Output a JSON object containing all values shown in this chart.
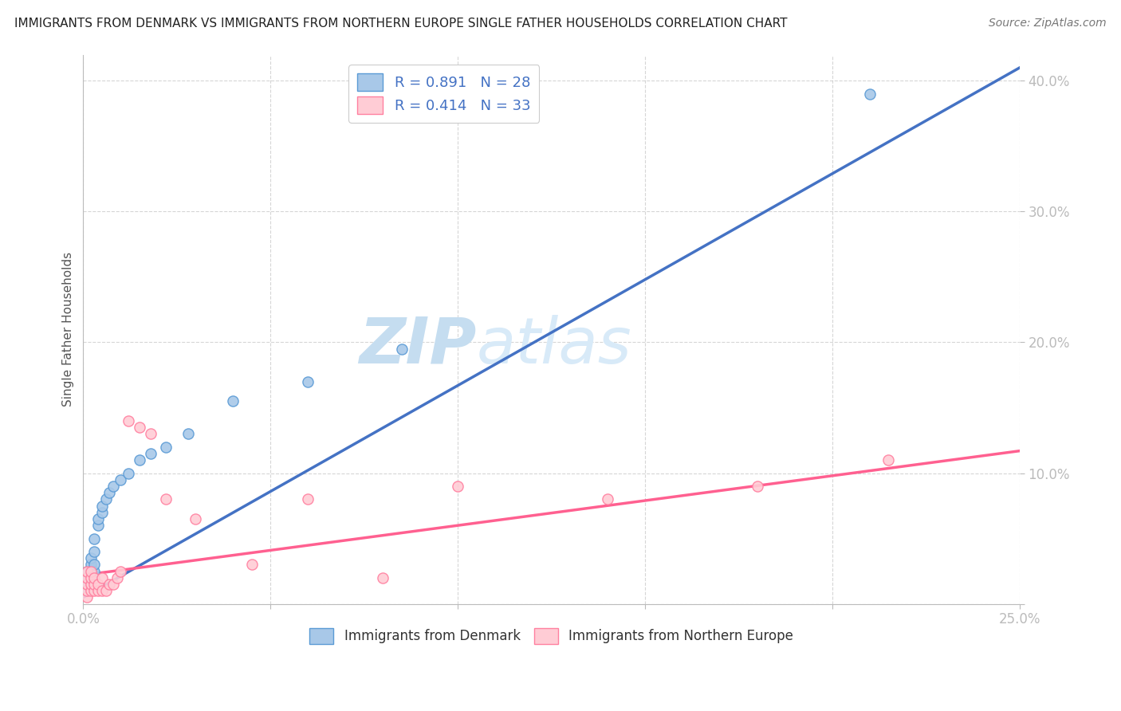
{
  "title": "IMMIGRANTS FROM DENMARK VS IMMIGRANTS FROM NORTHERN EUROPE SINGLE FATHER HOUSEHOLDS CORRELATION CHART",
  "source": "Source: ZipAtlas.com",
  "ylabel": "Single Father Households",
  "xlim": [
    0,
    0.25
  ],
  "ylim": [
    0,
    0.42
  ],
  "legend_r1": "R = 0.891",
  "legend_n1": "N = 28",
  "legend_r2": "R = 0.414",
  "legend_n2": "N = 33",
  "series1_color": "#a8c8e8",
  "series1_edge": "#5b9bd5",
  "series2_color": "#ffccd5",
  "series2_edge": "#ff80a0",
  "trendline1_color": "#4472c4",
  "trendline2_color": "#ff6090",
  "watermark_zip_color": "#c8dff0",
  "watermark_atlas_color": "#d8e8f5",
  "background_color": "#ffffff",
  "grid_color": "#cccccc",
  "tick_color": "#4472c4",
  "denmark_x": [
    0.001,
    0.001,
    0.001,
    0.001,
    0.002,
    0.002,
    0.002,
    0.003,
    0.003,
    0.003,
    0.003,
    0.004,
    0.004,
    0.005,
    0.005,
    0.006,
    0.007,
    0.008,
    0.01,
    0.012,
    0.015,
    0.018,
    0.022,
    0.028,
    0.04,
    0.06,
    0.085,
    0.21
  ],
  "denmark_y": [
    0.01,
    0.015,
    0.02,
    0.025,
    0.02,
    0.03,
    0.035,
    0.025,
    0.03,
    0.04,
    0.05,
    0.06,
    0.065,
    0.07,
    0.075,
    0.08,
    0.085,
    0.09,
    0.095,
    0.1,
    0.11,
    0.115,
    0.12,
    0.13,
    0.155,
    0.17,
    0.195,
    0.39
  ],
  "northern_x": [
    0.001,
    0.001,
    0.001,
    0.001,
    0.001,
    0.002,
    0.002,
    0.002,
    0.002,
    0.003,
    0.003,
    0.003,
    0.004,
    0.004,
    0.005,
    0.005,
    0.006,
    0.007,
    0.008,
    0.009,
    0.01,
    0.012,
    0.015,
    0.018,
    0.022,
    0.03,
    0.045,
    0.06,
    0.08,
    0.1,
    0.14,
    0.18,
    0.215
  ],
  "northern_y": [
    0.005,
    0.01,
    0.015,
    0.02,
    0.025,
    0.01,
    0.015,
    0.02,
    0.025,
    0.01,
    0.015,
    0.02,
    0.01,
    0.015,
    0.01,
    0.02,
    0.01,
    0.015,
    0.015,
    0.02,
    0.025,
    0.14,
    0.135,
    0.13,
    0.08,
    0.065,
    0.03,
    0.08,
    0.02,
    0.09,
    0.08,
    0.09,
    0.11
  ]
}
